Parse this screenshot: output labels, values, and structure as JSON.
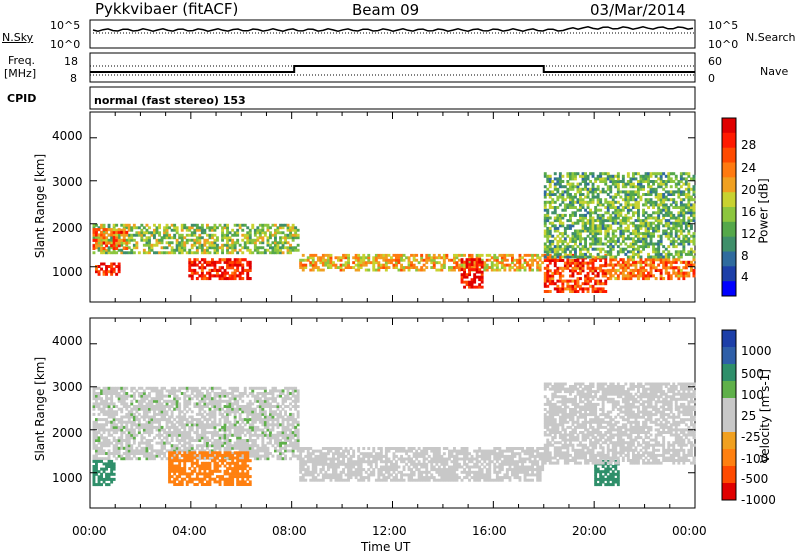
{
  "header": {
    "radar": "Pykkvibaer (fitACF)",
    "beam": "Beam 09",
    "date": "03/Mar/2014"
  },
  "top_panels": {
    "nsky_label": "N.Sky",
    "nsky_ticks": [
      "10^5",
      "10^0"
    ],
    "nsearch_ticks": [
      "10^5",
      "10^0"
    ],
    "nsearch_label": "N.Search",
    "freq_label_line1": "Freq.",
    "freq_label_line2": "[MHz]",
    "freq_ticks": [
      "18",
      "8"
    ],
    "nave_ticks": [
      "60",
      "0"
    ],
    "nave_label": "Nave",
    "cpid_label": "CPID",
    "cpid_text": "normal (fast stereo) 153"
  },
  "xaxis": {
    "ticks": [
      "00:00",
      "04:00",
      "08:00",
      "12:00",
      "16:00",
      "20:00",
      "00:00"
    ],
    "label": "Time UT"
  },
  "power_panel": {
    "ylabel": "Slant Range [km]",
    "yticks": [
      "4000",
      "3000",
      "2000",
      "1000"
    ],
    "colorbar_label": "Power [dB]",
    "colorbar_ticks": [
      "28",
      "24",
      "20",
      "16",
      "12",
      "8",
      "4"
    ],
    "colors": [
      "#0000ff",
      "#1d3fa8",
      "#2f6b9e",
      "#3f8f6a",
      "#55a84a",
      "#8cc63e",
      "#c8d230",
      "#f0a020",
      "#ff7a10",
      "#ff4a00",
      "#ff1a00",
      "#e00000"
    ]
  },
  "velocity_panel": {
    "ylabel": "Slant Range [km]",
    "yticks": [
      "4000",
      "3000",
      "2000",
      "1000"
    ],
    "colorbar_label": "Velocity [m s-1]",
    "colorbar_ticks": [
      "1000",
      "500",
      "100",
      "25",
      "-25",
      "-100",
      "-500",
      "-1000"
    ],
    "colors": [
      "#1d3fa8",
      "#2f5fa8",
      "#2f8f6a",
      "#5fb04a",
      "#c8c8c8",
      "#c8c8c8",
      "#f0a020",
      "#ff8010",
      "#ff4a00",
      "#e00000"
    ]
  },
  "chart_data": {
    "type": "heatmap",
    "x_range_hours": [
      0,
      24
    ],
    "y_range_km": [
      180,
      4600
    ],
    "power_regions": [
      {
        "t0": 0.1,
        "t1": 8.3,
        "r0": 1300,
        "r1": 2000,
        "db": 14
      },
      {
        "t0": 0.1,
        "t1": 1.5,
        "r0": 1400,
        "r1": 1900,
        "db": 22
      },
      {
        "t0": 0.2,
        "t1": 1.2,
        "r0": 800,
        "r1": 1100,
        "db": 26
      },
      {
        "t0": 3.9,
        "t1": 6.4,
        "r0": 700,
        "r1": 1200,
        "db": 26
      },
      {
        "t0": 8.3,
        "t1": 18.0,
        "r0": 900,
        "r1": 1300,
        "db": 18
      },
      {
        "t0": 14.7,
        "t1": 15.6,
        "r0": 500,
        "r1": 1200,
        "db": 28
      },
      {
        "t0": 18.0,
        "t1": 20.5,
        "r0": 400,
        "r1": 1300,
        "db": 24
      },
      {
        "t0": 20.5,
        "t1": 24.0,
        "r0": 700,
        "r1": 1200,
        "db": 22
      },
      {
        "t0": 18.0,
        "t1": 24.0,
        "r0": 1200,
        "r1": 3200,
        "db": 12
      }
    ],
    "velocity_regions": [
      {
        "t0": 0.1,
        "t1": 8.3,
        "r0": 1300,
        "r1": 3000,
        "v": 10
      },
      {
        "t0": 8.3,
        "t1": 18.0,
        "r0": 800,
        "r1": 1600,
        "v": 0
      },
      {
        "t0": 3.1,
        "t1": 6.4,
        "r0": 700,
        "r1": 1500,
        "v": -150
      },
      {
        "t0": 0.1,
        "t1": 1.0,
        "r0": 700,
        "r1": 1300,
        "v": 150
      },
      {
        "t0": 20.0,
        "t1": 21.0,
        "r0": 700,
        "r1": 1300,
        "v": 150
      },
      {
        "t0": 18.0,
        "t1": 24.0,
        "r0": 1200,
        "r1": 3100,
        "v": 5
      }
    ]
  }
}
